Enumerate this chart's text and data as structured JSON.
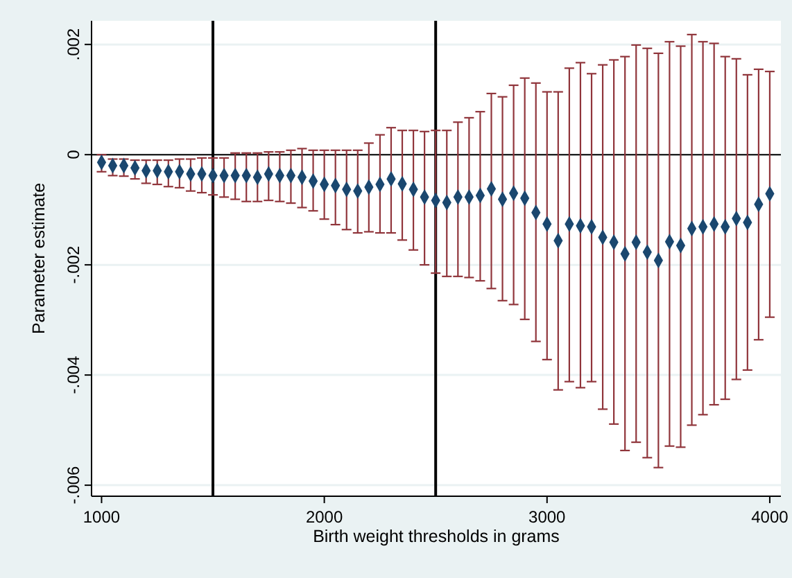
{
  "chart_data": {
    "type": "scatter",
    "xlabel": "Birth weight thresholds in grams",
    "ylabel": "Parameter estimate",
    "xlim": [
      955,
      4050
    ],
    "ylim": [
      -0.0062,
      0.00243
    ],
    "xticks": [
      1000,
      2000,
      3000,
      4000
    ],
    "yticks": [
      {
        "value": -0.006,
        "label": "-.006"
      },
      {
        "value": -0.004,
        "label": "-.004"
      },
      {
        "value": -0.002,
        "label": "-.002"
      },
      {
        "value": 0,
        "label": "0"
      },
      {
        "value": 0.002,
        "label": ".002"
      }
    ],
    "grid": "y",
    "marker": "diamond",
    "ref_lines": [
      {
        "axis": "x",
        "value": 1500,
        "color": "#000000"
      },
      {
        "axis": "x",
        "value": 2500,
        "color": "#000000"
      },
      {
        "axis": "y",
        "value": 0,
        "color": "#000000"
      }
    ],
    "x": [
      1000,
      1050,
      1100,
      1150,
      1200,
      1250,
      1300,
      1350,
      1400,
      1450,
      1500,
      1550,
      1600,
      1650,
      1700,
      1750,
      1800,
      1850,
      1900,
      1950,
      2000,
      2050,
      2100,
      2150,
      2200,
      2250,
      2300,
      2350,
      2400,
      2450,
      2500,
      2550,
      2600,
      2650,
      2700,
      2750,
      2800,
      2850,
      2900,
      2950,
      3000,
      3050,
      3100,
      3150,
      3200,
      3250,
      3300,
      3350,
      3400,
      3450,
      3500,
      3550,
      3600,
      3650,
      3700,
      3750,
      3800,
      3850,
      3900,
      3950,
      4000
    ],
    "series": [
      {
        "color": "#1a476f",
        "values": [
          -0.00014,
          -0.0002,
          -0.0002,
          -0.00024,
          -0.00029,
          -0.00029,
          -0.00031,
          -0.00031,
          -0.00035,
          -0.00035,
          -0.00038,
          -0.00038,
          -0.00038,
          -0.00038,
          -0.00041,
          -0.00035,
          -0.00038,
          -0.00038,
          -0.00041,
          -0.00048,
          -0.00054,
          -0.00056,
          -0.00063,
          -0.00066,
          -0.00059,
          -0.00054,
          -0.00044,
          -0.00053,
          -0.00063,
          -0.00077,
          -0.00083,
          -0.00087,
          -0.00077,
          -0.00077,
          -0.00074,
          -0.00062,
          -0.00081,
          -0.0007,
          -0.00079,
          -0.00105,
          -0.00126,
          -0.00156,
          -0.00126,
          -0.00129,
          -0.00131,
          -0.0015,
          -0.00159,
          -0.0018,
          -0.00159,
          -0.00177,
          -0.00192,
          -0.00158,
          -0.00165,
          -0.00134,
          -0.00131,
          -0.00126,
          -0.00131,
          -0.00116,
          -0.00123,
          -0.0009,
          -0.00071
        ],
        "errors": [
          [
            -0.00031,
            0
          ],
          [
            -0.00038,
            -8e-05
          ],
          [
            -0.00039,
            -8e-05
          ],
          [
            -0.00044,
            -0.0001
          ],
          [
            -0.00052,
            -0.0001
          ],
          [
            -0.00054,
            -0.0001
          ],
          [
            -0.00058,
            -0.0001
          ],
          [
            -0.0006,
            -8e-05
          ],
          [
            -0.00066,
            -8e-05
          ],
          [
            -0.00069,
            -6e-05
          ],
          [
            -0.00073,
            -6e-05
          ],
          [
            -0.00077,
            -6e-05
          ],
          [
            -0.00081,
            3e-05
          ],
          [
            -0.00085,
            3e-05
          ],
          [
            -0.00085,
            3e-05
          ],
          [
            -0.00083,
            5e-05
          ],
          [
            -0.00085,
            5e-05
          ],
          [
            -0.00088,
            8e-05
          ],
          [
            -0.00096,
            0.00011
          ],
          [
            -0.00102,
            8e-05
          ],
          [
            -0.00117,
            8e-05
          ],
          [
            -0.00127,
            8e-05
          ],
          [
            -0.00136,
            8e-05
          ],
          [
            -0.00142,
            8e-05
          ],
          [
            -0.0014,
            0.00021
          ],
          [
            -0.00142,
            0.00036
          ],
          [
            -0.00142,
            0.00049
          ],
          [
            -0.00155,
            0.00044
          ],
          [
            -0.00173,
            0.00044
          ],
          [
            -0.002,
            0.00042
          ],
          [
            -0.00215,
            0.00044
          ],
          [
            -0.00221,
            0.00044
          ],
          [
            -0.00221,
            0.00059
          ],
          [
            -0.00223,
            0.00067
          ],
          [
            -0.00229,
            0.00078
          ],
          [
            -0.00243,
            0.00111
          ],
          [
            -0.00265,
            0.00105
          ],
          [
            -0.00272,
            0.00126
          ],
          [
            -0.00299,
            0.00139
          ],
          [
            -0.00339,
            0.0013
          ],
          [
            -0.00372,
            0.00114
          ],
          [
            -0.00427,
            0.00114
          ],
          [
            -0.00412,
            0.00157
          ],
          [
            -0.00423,
            0.00167
          ],
          [
            -0.00412,
            0.00147
          ],
          [
            -0.00462,
            0.00163
          ],
          [
            -0.00489,
            0.00172
          ],
          [
            -0.00537,
            0.00178
          ],
          [
            -0.00522,
            0.00199
          ],
          [
            -0.0055,
            0.00193
          ],
          [
            -0.00568,
            0.00184
          ],
          [
            -0.00529,
            0.00205
          ],
          [
            -0.00531,
            0.00197
          ],
          [
            -0.00491,
            0.00218
          ],
          [
            -0.00472,
            0.00205
          ],
          [
            -0.00454,
            0.00202
          ],
          [
            -0.00444,
            0.00178
          ],
          [
            -0.00408,
            0.00174
          ],
          [
            -0.00391,
            0.00145
          ],
          [
            -0.00336,
            0.00155
          ],
          [
            -0.00295,
            0.00151
          ]
        ]
      }
    ]
  }
}
